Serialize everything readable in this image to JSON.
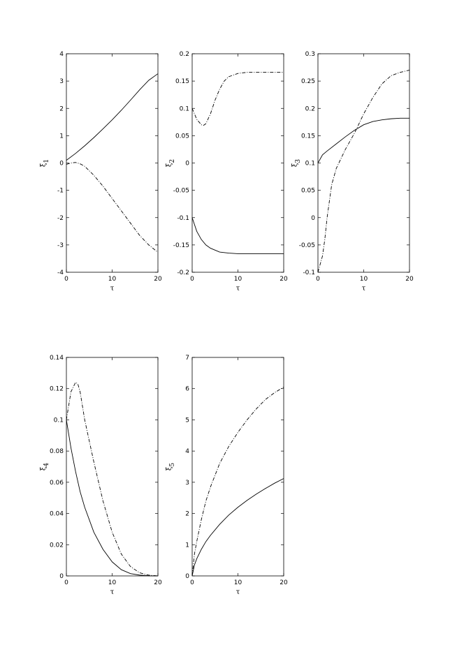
{
  "chart_data": [
    {
      "type": "line",
      "xlabel": "τ",
      "ylabel": "ξ",
      "ylabel_sub": "1",
      "xlim": [
        0,
        20
      ],
      "ylim": [
        -4,
        4
      ],
      "xticks": [
        0,
        10,
        20
      ],
      "xtick_labels": [
        "0",
        "10",
        "20"
      ],
      "yticks": [
        -4,
        -3,
        -2,
        -1,
        0,
        1,
        2,
        3,
        4
      ],
      "ytick_labels": [
        "-4",
        "-3",
        "-2",
        "-1",
        "0",
        "1",
        "2",
        "3",
        "4"
      ],
      "series": [
        {
          "style": "solid",
          "x": [
            0,
            2,
            4,
            6,
            8,
            10,
            12,
            14,
            16,
            18,
            20
          ],
          "y": [
            0.1,
            0.35,
            0.63,
            0.93,
            1.25,
            1.58,
            1.93,
            2.3,
            2.68,
            3.03,
            3.27
          ]
        },
        {
          "style": "dashdot",
          "x": [
            0,
            1,
            2,
            3,
            4,
            6,
            8,
            10,
            12,
            14,
            16,
            18,
            20
          ],
          "y": [
            -0.05,
            0.0,
            0.02,
            -0.03,
            -0.12,
            -0.45,
            -0.85,
            -1.3,
            -1.75,
            -2.2,
            -2.65,
            -3.0,
            -3.27
          ]
        }
      ]
    },
    {
      "type": "line",
      "xlabel": "τ",
      "ylabel": "ξ",
      "ylabel_sub": "2",
      "xlim": [
        0,
        20
      ],
      "ylim": [
        -0.2,
        0.2
      ],
      "xticks": [
        0,
        10,
        20
      ],
      "xtick_labels": [
        "0",
        "10",
        "20"
      ],
      "yticks": [
        -0.2,
        -0.15,
        -0.1,
        -0.05,
        0,
        0.05,
        0.1,
        0.15,
        0.2
      ],
      "ytick_labels": [
        "-0.2",
        "-0.15",
        "-0.1",
        "-0.05",
        "0",
        "0.05",
        "0.1",
        "0.15",
        "0.2"
      ],
      "series": [
        {
          "style": "solid",
          "x": [
            0,
            1,
            2,
            3,
            4,
            6,
            8,
            10,
            12,
            15,
            20
          ],
          "y": [
            -0.1,
            -0.125,
            -0.14,
            -0.15,
            -0.156,
            -0.163,
            -0.165,
            -0.166,
            -0.166,
            -0.166,
            -0.166
          ]
        },
        {
          "style": "dashdot",
          "x": [
            0,
            1,
            2,
            2.5,
            3,
            4,
            5,
            6,
            7,
            8,
            10,
            12,
            15,
            20
          ],
          "y": [
            0.1,
            0.08,
            0.07,
            0.069,
            0.072,
            0.09,
            0.115,
            0.135,
            0.15,
            0.158,
            0.164,
            0.166,
            0.166,
            0.166
          ]
        }
      ]
    },
    {
      "type": "line",
      "xlabel": "τ",
      "ylabel": "ξ",
      "ylabel_sub": "3",
      "xlim": [
        0,
        20
      ],
      "ylim": [
        -0.1,
        0.3
      ],
      "xticks": [
        0,
        10,
        20
      ],
      "xtick_labels": [
        "0",
        "10",
        "20"
      ],
      "yticks": [
        -0.1,
        -0.05,
        0,
        0.05,
        0.1,
        0.15,
        0.2,
        0.25,
        0.3
      ],
      "ytick_labels": [
        "-0.1",
        "-0.05",
        "0",
        "0.05",
        "0.1",
        "0.15",
        "0.2",
        "0.25",
        "0.3"
      ],
      "series": [
        {
          "style": "solid",
          "x": [
            0,
            1,
            2,
            4,
            6,
            8,
            10,
            12,
            14,
            16,
            18,
            20
          ],
          "y": [
            0.1,
            0.115,
            0.122,
            0.135,
            0.148,
            0.16,
            0.17,
            0.176,
            0.179,
            0.181,
            0.182,
            0.182
          ]
        },
        {
          "style": "dashdot",
          "x": [
            0,
            1,
            1.5,
            2,
            3,
            4,
            6,
            8,
            10,
            12,
            14,
            16,
            18,
            20
          ],
          "y": [
            -0.1,
            -0.07,
            -0.04,
            0.0,
            0.06,
            0.09,
            0.125,
            0.155,
            0.19,
            0.22,
            0.245,
            0.26,
            0.266,
            0.27
          ]
        }
      ]
    },
    {
      "type": "line",
      "xlabel": "τ",
      "ylabel": "ξ",
      "ylabel_sub": "4",
      "xlim": [
        0,
        20
      ],
      "ylim": [
        0,
        0.14
      ],
      "xticks": [
        0,
        10,
        20
      ],
      "xtick_labels": [
        "0",
        "10",
        "20"
      ],
      "yticks": [
        0,
        0.02,
        0.04,
        0.06,
        0.08,
        0.1,
        0.12,
        0.14
      ],
      "ytick_labels": [
        "0",
        "0.02",
        "0.04",
        "0.06",
        "0.08",
        "0.1",
        "0.12",
        "0.14"
      ],
      "series": [
        {
          "style": "solid",
          "x": [
            0,
            1,
            2,
            3,
            4,
            6,
            8,
            10,
            12,
            14,
            16,
            18,
            20
          ],
          "y": [
            0.1,
            0.082,
            0.067,
            0.054,
            0.044,
            0.028,
            0.017,
            0.009,
            0.004,
            0.0015,
            0.0005,
            0.0001,
            0.0
          ]
        },
        {
          "style": "dashdot",
          "x": [
            0,
            1,
            2,
            2.5,
            3,
            4,
            6,
            8,
            10,
            12,
            14,
            16,
            18,
            20
          ],
          "y": [
            0.1,
            0.118,
            0.124,
            0.123,
            0.118,
            0.1,
            0.073,
            0.048,
            0.028,
            0.014,
            0.006,
            0.002,
            0.0005,
            0.0
          ]
        }
      ]
    },
    {
      "type": "line",
      "xlabel": "τ",
      "ylabel": "ξ",
      "ylabel_sub": "5",
      "xlim": [
        0,
        20
      ],
      "ylim": [
        0,
        7
      ],
      "xticks": [
        0,
        10,
        20
      ],
      "xtick_labels": [
        "0",
        "10",
        "20"
      ],
      "yticks": [
        0,
        1,
        2,
        3,
        4,
        5,
        6,
        7
      ],
      "ytick_labels": [
        "0",
        "1",
        "2",
        "3",
        "4",
        "5",
        "6",
        "7"
      ],
      "series": [
        {
          "style": "solid",
          "x": [
            0,
            0.5,
            1,
            2,
            3,
            4,
            6,
            8,
            10,
            12,
            14,
            16,
            18,
            20
          ],
          "y": [
            0.0,
            0.35,
            0.55,
            0.85,
            1.1,
            1.3,
            1.65,
            1.95,
            2.2,
            2.42,
            2.62,
            2.8,
            2.97,
            3.12
          ]
        },
        {
          "style": "dashdot",
          "x": [
            0,
            0.5,
            1,
            2,
            3,
            4,
            6,
            8,
            10,
            12,
            14,
            16,
            18,
            20
          ],
          "y": [
            0.0,
            0.7,
            1.1,
            1.8,
            2.4,
            2.85,
            3.6,
            4.15,
            4.6,
            5.0,
            5.35,
            5.65,
            5.87,
            6.05
          ]
        }
      ]
    }
  ]
}
